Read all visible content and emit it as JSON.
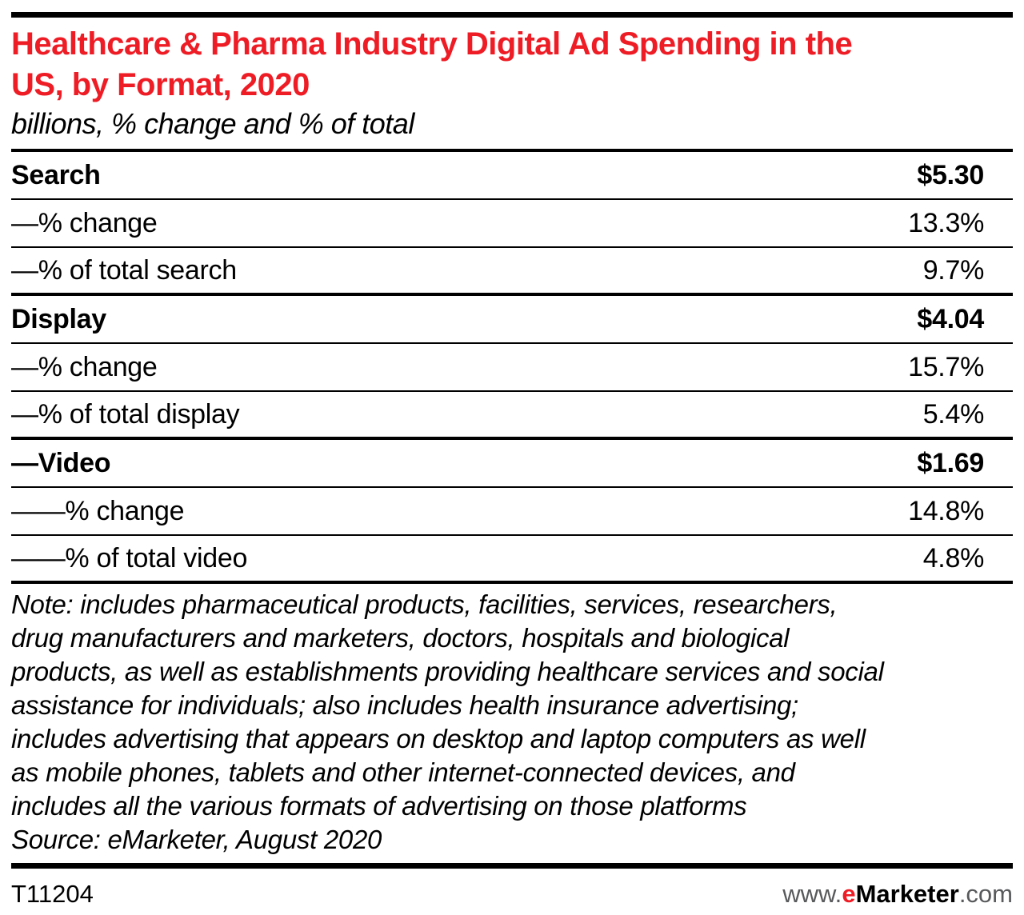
{
  "header": {
    "title": "Healthcare & Pharma Industry Digital Ad Spending in the US, by Format, 2020",
    "title_lines": [
      "Healthcare & Pharma Industry Digital Ad Spending in the",
      "US, by Format, 2020"
    ],
    "subtitle": "billions, % change and % of total"
  },
  "table": {
    "rows": [
      {
        "label": "Search",
        "value": "$5.30"
      },
      {
        "label": "—% change",
        "value": "13.3%"
      },
      {
        "label": "—% of total search",
        "value": "9.7%"
      },
      {
        "label": "Display",
        "value": "$4.04"
      },
      {
        "label": "—% change",
        "value": "15.7%"
      },
      {
        "label": "—% of total display",
        "value": "5.4%"
      },
      {
        "label": "—Video",
        "value": "$1.69"
      },
      {
        "label": "——% change",
        "value": "14.8%"
      },
      {
        "label": "——% of total video",
        "value": "4.8%"
      }
    ]
  },
  "note": {
    "lines": [
      "Note: includes pharmaceutical products, facilities, services, researchers,",
      "drug manufacturers and marketers, doctors, hospitals and biological",
      "products, as well as establishments providing healthcare services and social",
      "assistance for individuals; also includes health insurance advertising;",
      "includes advertising that appears on desktop and laptop computers as well",
      "as mobile phones, tablets and other internet-connected devices, and",
      "includes all the various formats of advertising on those platforms"
    ],
    "source": "Source: eMarketer, August 2020"
  },
  "footer": {
    "chart_id": "T11204",
    "site": {
      "www": "www.",
      "e": "e",
      "marketer": "Marketer",
      "com": ".com"
    }
  },
  "colors": {
    "brand_red": "#EE1C25",
    "text": "#000000",
    "muted_gray": "#58595B",
    "background": "#FFFFFF"
  },
  "chart_data": {
    "type": "table",
    "title": "Healthcare & Pharma Industry Digital Ad Spending in the US, by Format, 2020",
    "subtitle": "billions, % change and % of total",
    "unit": "USD billions",
    "categories": [
      "Search",
      "Display",
      "Video"
    ],
    "series": [
      {
        "name": "Ad spending ($ billions)",
        "values": [
          5.3,
          4.04,
          1.69
        ]
      },
      {
        "name": "% change",
        "values": [
          13.3,
          15.7,
          14.8
        ]
      },
      {
        "name": "% of total (per format)",
        "values": [
          9.7,
          5.4,
          4.8
        ]
      }
    ],
    "source": "eMarketer, August 2020",
    "legend_position": "none",
    "grid": false
  }
}
